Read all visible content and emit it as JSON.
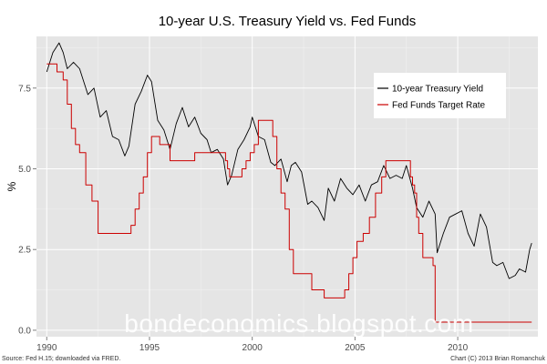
{
  "chart_data": {
    "type": "line",
    "title": "10-year U.S. Treasury Yield vs. Fed Funds",
    "xlabel": "",
    "ylabel": "%",
    "xlim": [
      1989.5,
      2013.9
    ],
    "ylim": [
      -0.2,
      9.1
    ],
    "x_ticks": [
      1990,
      1995,
      2000,
      2005,
      2010
    ],
    "x_tick_labels": [
      "1990",
      "1995",
      "2000",
      "2005",
      "2010"
    ],
    "y_ticks": [
      0,
      2.5,
      5,
      7.5
    ],
    "y_tick_labels": [
      "0.0",
      "2.5",
      "5.0",
      "7.5"
    ],
    "grid": true,
    "legend": {
      "position": "top-right",
      "entries": [
        "10-year Treasury Yield",
        "Fed Funds Target Rate"
      ]
    },
    "colors": {
      "treasury": "#000000",
      "fedfunds": "#cc0000",
      "panel": "#e5e5e5",
      "grid": "#ffffff"
    },
    "series": [
      {
        "name": "10-year Treasury Yield",
        "color": "#000000",
        "x": [
          1990.0,
          1990.3,
          1990.6,
          1990.8,
          1991.0,
          1991.3,
          1991.6,
          1991.9,
          1992.0,
          1992.3,
          1992.6,
          1992.9,
          1993.2,
          1993.5,
          1993.8,
          1994.0,
          1994.3,
          1994.6,
          1994.9,
          1995.1,
          1995.4,
          1995.7,
          1996.0,
          1996.3,
          1996.6,
          1996.9,
          1997.2,
          1997.5,
          1997.8,
          1998.0,
          1998.3,
          1998.6,
          1998.8,
          1999.0,
          1999.3,
          1999.6,
          1999.9,
          2000.0,
          2000.3,
          2000.6,
          2000.9,
          2001.1,
          2001.4,
          2001.7,
          2001.9,
          2002.1,
          2002.4,
          2002.7,
          2002.9,
          2003.2,
          2003.5,
          2003.7,
          2004.0,
          2004.3,
          2004.6,
          2004.9,
          2005.2,
          2005.5,
          2005.8,
          2006.1,
          2006.4,
          2006.7,
          2007.0,
          2007.3,
          2007.5,
          2007.8,
          2008.0,
          2008.3,
          2008.6,
          2008.9,
          2009.0,
          2009.3,
          2009.6,
          2009.9,
          2010.2,
          2010.5,
          2010.8,
          2011.1,
          2011.4,
          2011.7,
          2011.9,
          2012.2,
          2012.5,
          2012.8,
          2013.0,
          2013.3,
          2013.5,
          2013.6
        ],
        "values": [
          8.0,
          8.6,
          8.9,
          8.6,
          8.1,
          8.3,
          8.1,
          7.5,
          7.3,
          7.5,
          6.6,
          6.8,
          6.0,
          5.9,
          5.4,
          5.7,
          7.0,
          7.4,
          7.9,
          7.7,
          6.5,
          6.2,
          5.6,
          6.4,
          6.9,
          6.3,
          6.6,
          6.1,
          5.9,
          5.5,
          5.6,
          5.3,
          4.5,
          4.8,
          5.6,
          5.9,
          6.3,
          6.6,
          6.0,
          5.9,
          5.2,
          5.1,
          5.3,
          4.6,
          5.1,
          5.2,
          4.9,
          3.9,
          4.0,
          3.8,
          3.4,
          4.4,
          4.0,
          4.7,
          4.4,
          4.2,
          4.5,
          4.0,
          4.5,
          4.6,
          5.1,
          4.7,
          4.8,
          4.7,
          5.1,
          4.4,
          3.8,
          3.5,
          4.0,
          3.6,
          2.4,
          3.0,
          3.5,
          3.6,
          3.7,
          3.0,
          2.6,
          3.6,
          3.2,
          2.1,
          2.0,
          2.1,
          1.6,
          1.7,
          1.9,
          1.8,
          2.5,
          2.7
        ]
      },
      {
        "name": "Fed Funds Target Rate",
        "color": "#cc0000",
        "step": true,
        "x": [
          1990.0,
          1990.5,
          1990.8,
          1991.0,
          1991.2,
          1991.4,
          1991.6,
          1991.9,
          1992.2,
          1992.5,
          1994.1,
          1994.3,
          1994.5,
          1994.7,
          1994.9,
          1995.1,
          1995.5,
          1996.0,
          1997.2,
          1998.7,
          1998.8,
          1998.9,
          1999.5,
          1999.7,
          1999.9,
          2000.1,
          2000.3,
          2001.0,
          2001.2,
          2001.4,
          2001.6,
          2001.8,
          2002.0,
          2002.9,
          2003.5,
          2004.5,
          2004.7,
          2004.9,
          2005.1,
          2005.4,
          2005.7,
          2006.0,
          2006.3,
          2006.5,
          2007.7,
          2007.8,
          2007.9,
          2008.0,
          2008.1,
          2008.3,
          2008.8,
          2008.9,
          2013.6
        ],
        "values": [
          8.25,
          8.0,
          7.75,
          7.0,
          6.25,
          5.75,
          5.5,
          4.5,
          4.0,
          3.0,
          3.25,
          3.75,
          4.25,
          4.75,
          5.5,
          6.0,
          5.75,
          5.25,
          5.5,
          5.25,
          5.0,
          4.75,
          5.0,
          5.25,
          5.5,
          5.75,
          6.5,
          6.0,
          5.0,
          4.25,
          3.75,
          2.5,
          1.75,
          1.25,
          1.0,
          1.25,
          1.75,
          2.25,
          2.75,
          3.0,
          3.5,
          4.25,
          4.75,
          5.25,
          4.75,
          4.5,
          4.25,
          3.5,
          3.0,
          2.25,
          2.0,
          0.25,
          0.25
        ]
      }
    ],
    "annotations": {
      "watermark": "bondeconomics.blogspot.com",
      "source": "Source: Fed H.15; downloaded via FRED.",
      "credit": "Chart (C) 2013 Brian Romanchuk"
    }
  }
}
